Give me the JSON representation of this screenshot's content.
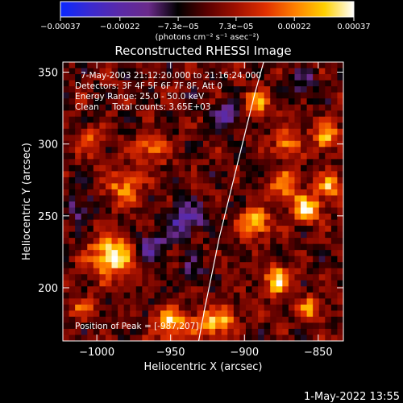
{
  "chart_data": {
    "type": "heatmap",
    "title": "Reconstructed RHESSI Image",
    "xlabel": "Heliocentric X (arcsec)",
    "ylabel": "Heliocentric Y (arcsec)",
    "xlim": [
      -1023,
      -833
    ],
    "ylim": [
      163,
      357
    ],
    "xticks": [
      -1000,
      -950,
      -900,
      -850
    ],
    "yticks": [
      200,
      250,
      300,
      350
    ],
    "xtick_labels": [
      "−1000",
      "−950",
      "−900",
      "−850"
    ],
    "ytick_labels": [
      "200",
      "250",
      "300",
      "350"
    ],
    "colorbar": {
      "range": [
        -0.00037,
        0.00037
      ],
      "ticks": [
        -0.00037,
        -0.00022,
        -7.3e-05,
        7.3e-05,
        0.00022,
        0.00037
      ],
      "tick_labels": [
        "−0.00037",
        "−0.00022",
        "−7.3e−05",
        "7.3e−05",
        "0.00022",
        "0.00037"
      ],
      "unit_label": "(photons cm⁻² s⁻¹ asec⁻²)"
    },
    "colormap_stops": [
      "#0a28ff",
      "#3a2ad0",
      "#5a2aa8",
      "#6a2a8a",
      "#000000",
      "#5a0000",
      "#a01000",
      "#e03000",
      "#ff8000",
      "#ffd000",
      "#ffffff"
    ],
    "annotations": [
      "7-May-2003 21:12:20.000 to 21:16:24.000",
      "Detectors: 3F 4F 5F 6F 7F 8F, Att 0",
      "Energy Range: 25.0 - 50.0 keV",
      "Clean     Total counts: 3.65E+03"
    ],
    "peak_label": "Position of Peak = [-987,207]",
    "limb_curve": {
      "x": [
        -931,
        -927,
        -922,
        -917,
        -911,
        -905,
        -899,
        -893,
        -887
      ],
      "y": [
        163,
        185,
        210,
        235,
        260,
        285,
        310,
        335,
        357
      ]
    },
    "blobs": [
      {
        "x": -990,
        "y": 222,
        "amp": 0.00037,
        "r": 14
      },
      {
        "x": -982,
        "y": 270,
        "amp": 0.00022,
        "r": 12
      },
      {
        "x": -964,
        "y": 296,
        "amp": 0.0002,
        "r": 11
      },
      {
        "x": -1005,
        "y": 302,
        "amp": 0.00018,
        "r": 9
      },
      {
        "x": -950,
        "y": 175,
        "amp": 0.0003,
        "r": 11
      },
      {
        "x": -925,
        "y": 175,
        "amp": 0.00026,
        "r": 10
      },
      {
        "x": -893,
        "y": 245,
        "amp": 0.0003,
        "r": 10
      },
      {
        "x": -873,
        "y": 272,
        "amp": 0.00025,
        "r": 10
      },
      {
        "x": -858,
        "y": 255,
        "amp": 0.00037,
        "r": 9
      },
      {
        "x": -843,
        "y": 270,
        "amp": 0.00028,
        "r": 8
      },
      {
        "x": -877,
        "y": 205,
        "amp": 0.0003,
        "r": 10
      },
      {
        "x": -892,
        "y": 328,
        "amp": 0.00024,
        "r": 9
      },
      {
        "x": -872,
        "y": 300,
        "amp": 0.00022,
        "r": 9
      },
      {
        "x": -845,
        "y": 305,
        "amp": 0.00028,
        "r": 9
      },
      {
        "x": -855,
        "y": 185,
        "amp": 0.00022,
        "r": 9
      },
      {
        "x": -912,
        "y": 178,
        "amp": 0.0002,
        "r": 8
      },
      {
        "x": -1010,
        "y": 185,
        "amp": 0.00016,
        "r": 8
      },
      {
        "x": -940,
        "y": 248,
        "amp": -0.00022,
        "r": 12
      },
      {
        "x": -962,
        "y": 230,
        "amp": -0.0002,
        "r": 10
      },
      {
        "x": -1010,
        "y": 255,
        "amp": -0.00016,
        "r": 9
      },
      {
        "x": -910,
        "y": 320,
        "amp": -0.00018,
        "r": 10
      },
      {
        "x": -860,
        "y": 340,
        "amp": -0.00014,
        "r": 9
      },
      {
        "x": -935,
        "y": 210,
        "amp": -0.00015,
        "r": 9
      }
    ]
  },
  "footer": {
    "timestamp": "1-May-2022 13:55"
  }
}
